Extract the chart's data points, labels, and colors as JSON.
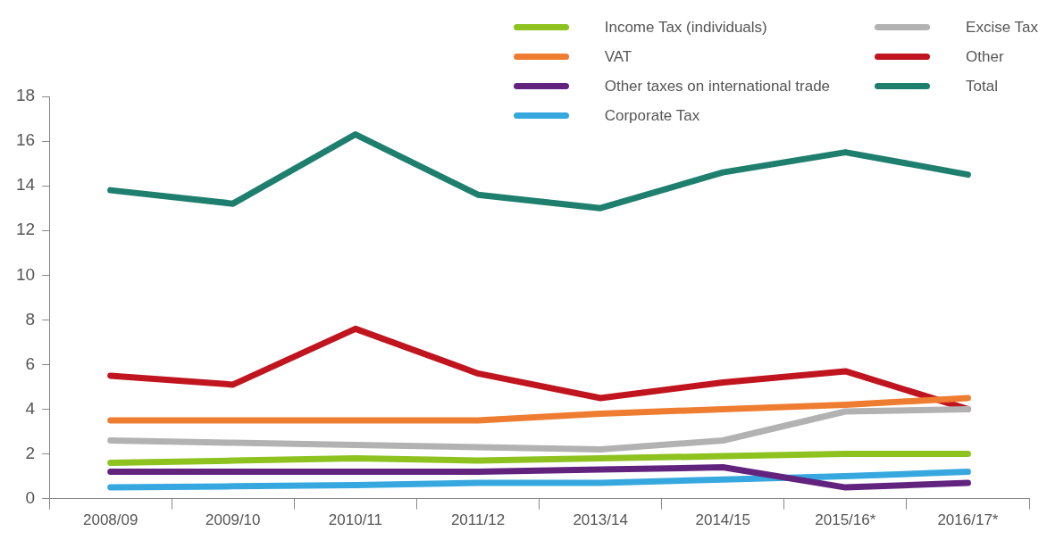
{
  "chart_data": {
    "type": "line",
    "categories": [
      "2008/09",
      "2009/10",
      "2010/11",
      "2011/12",
      "2013/14",
      "2014/15",
      "2015/16*",
      "2016/17*"
    ],
    "series": [
      {
        "name": "Income Tax (individuals)",
        "color": "#8dc21f",
        "values": [
          1.6,
          1.7,
          1.8,
          1.7,
          1.8,
          1.9,
          2.0,
          2.0
        ]
      },
      {
        "name": "VAT",
        "color": "#ee7d31",
        "values": [
          3.5,
          3.5,
          3.5,
          3.5,
          3.8,
          4.0,
          4.2,
          4.5
        ]
      },
      {
        "name": "Other taxes on international trade",
        "color": "#62237f",
        "values": [
          1.2,
          1.2,
          1.2,
          1.2,
          1.3,
          1.4,
          0.5,
          0.7
        ]
      },
      {
        "name": "Corporate Tax",
        "color": "#37a8df",
        "values": [
          0.5,
          0.55,
          0.6,
          0.7,
          0.7,
          0.85,
          1.0,
          1.2
        ]
      },
      {
        "name": "Excise Tax",
        "color": "#b2b2b2",
        "values": [
          2.6,
          2.5,
          2.4,
          2.3,
          2.2,
          2.6,
          3.9,
          4.0
        ]
      },
      {
        "name": "Other",
        "color": "#c0141f",
        "values": [
          5.5,
          5.1,
          7.6,
          5.6,
          4.5,
          5.2,
          5.7,
          4.0
        ]
      },
      {
        "name": "Total",
        "color": "#1f7f6e",
        "values": [
          13.8,
          13.2,
          16.3,
          13.6,
          13.0,
          14.6,
          15.5,
          14.5
        ]
      }
    ],
    "ylim": [
      0,
      18
    ],
    "yticks": [
      0,
      2,
      4,
      6,
      8,
      10,
      12,
      14,
      16,
      18
    ],
    "grid": false,
    "legend": "top right",
    "marker": "none",
    "line_style": "solid"
  }
}
